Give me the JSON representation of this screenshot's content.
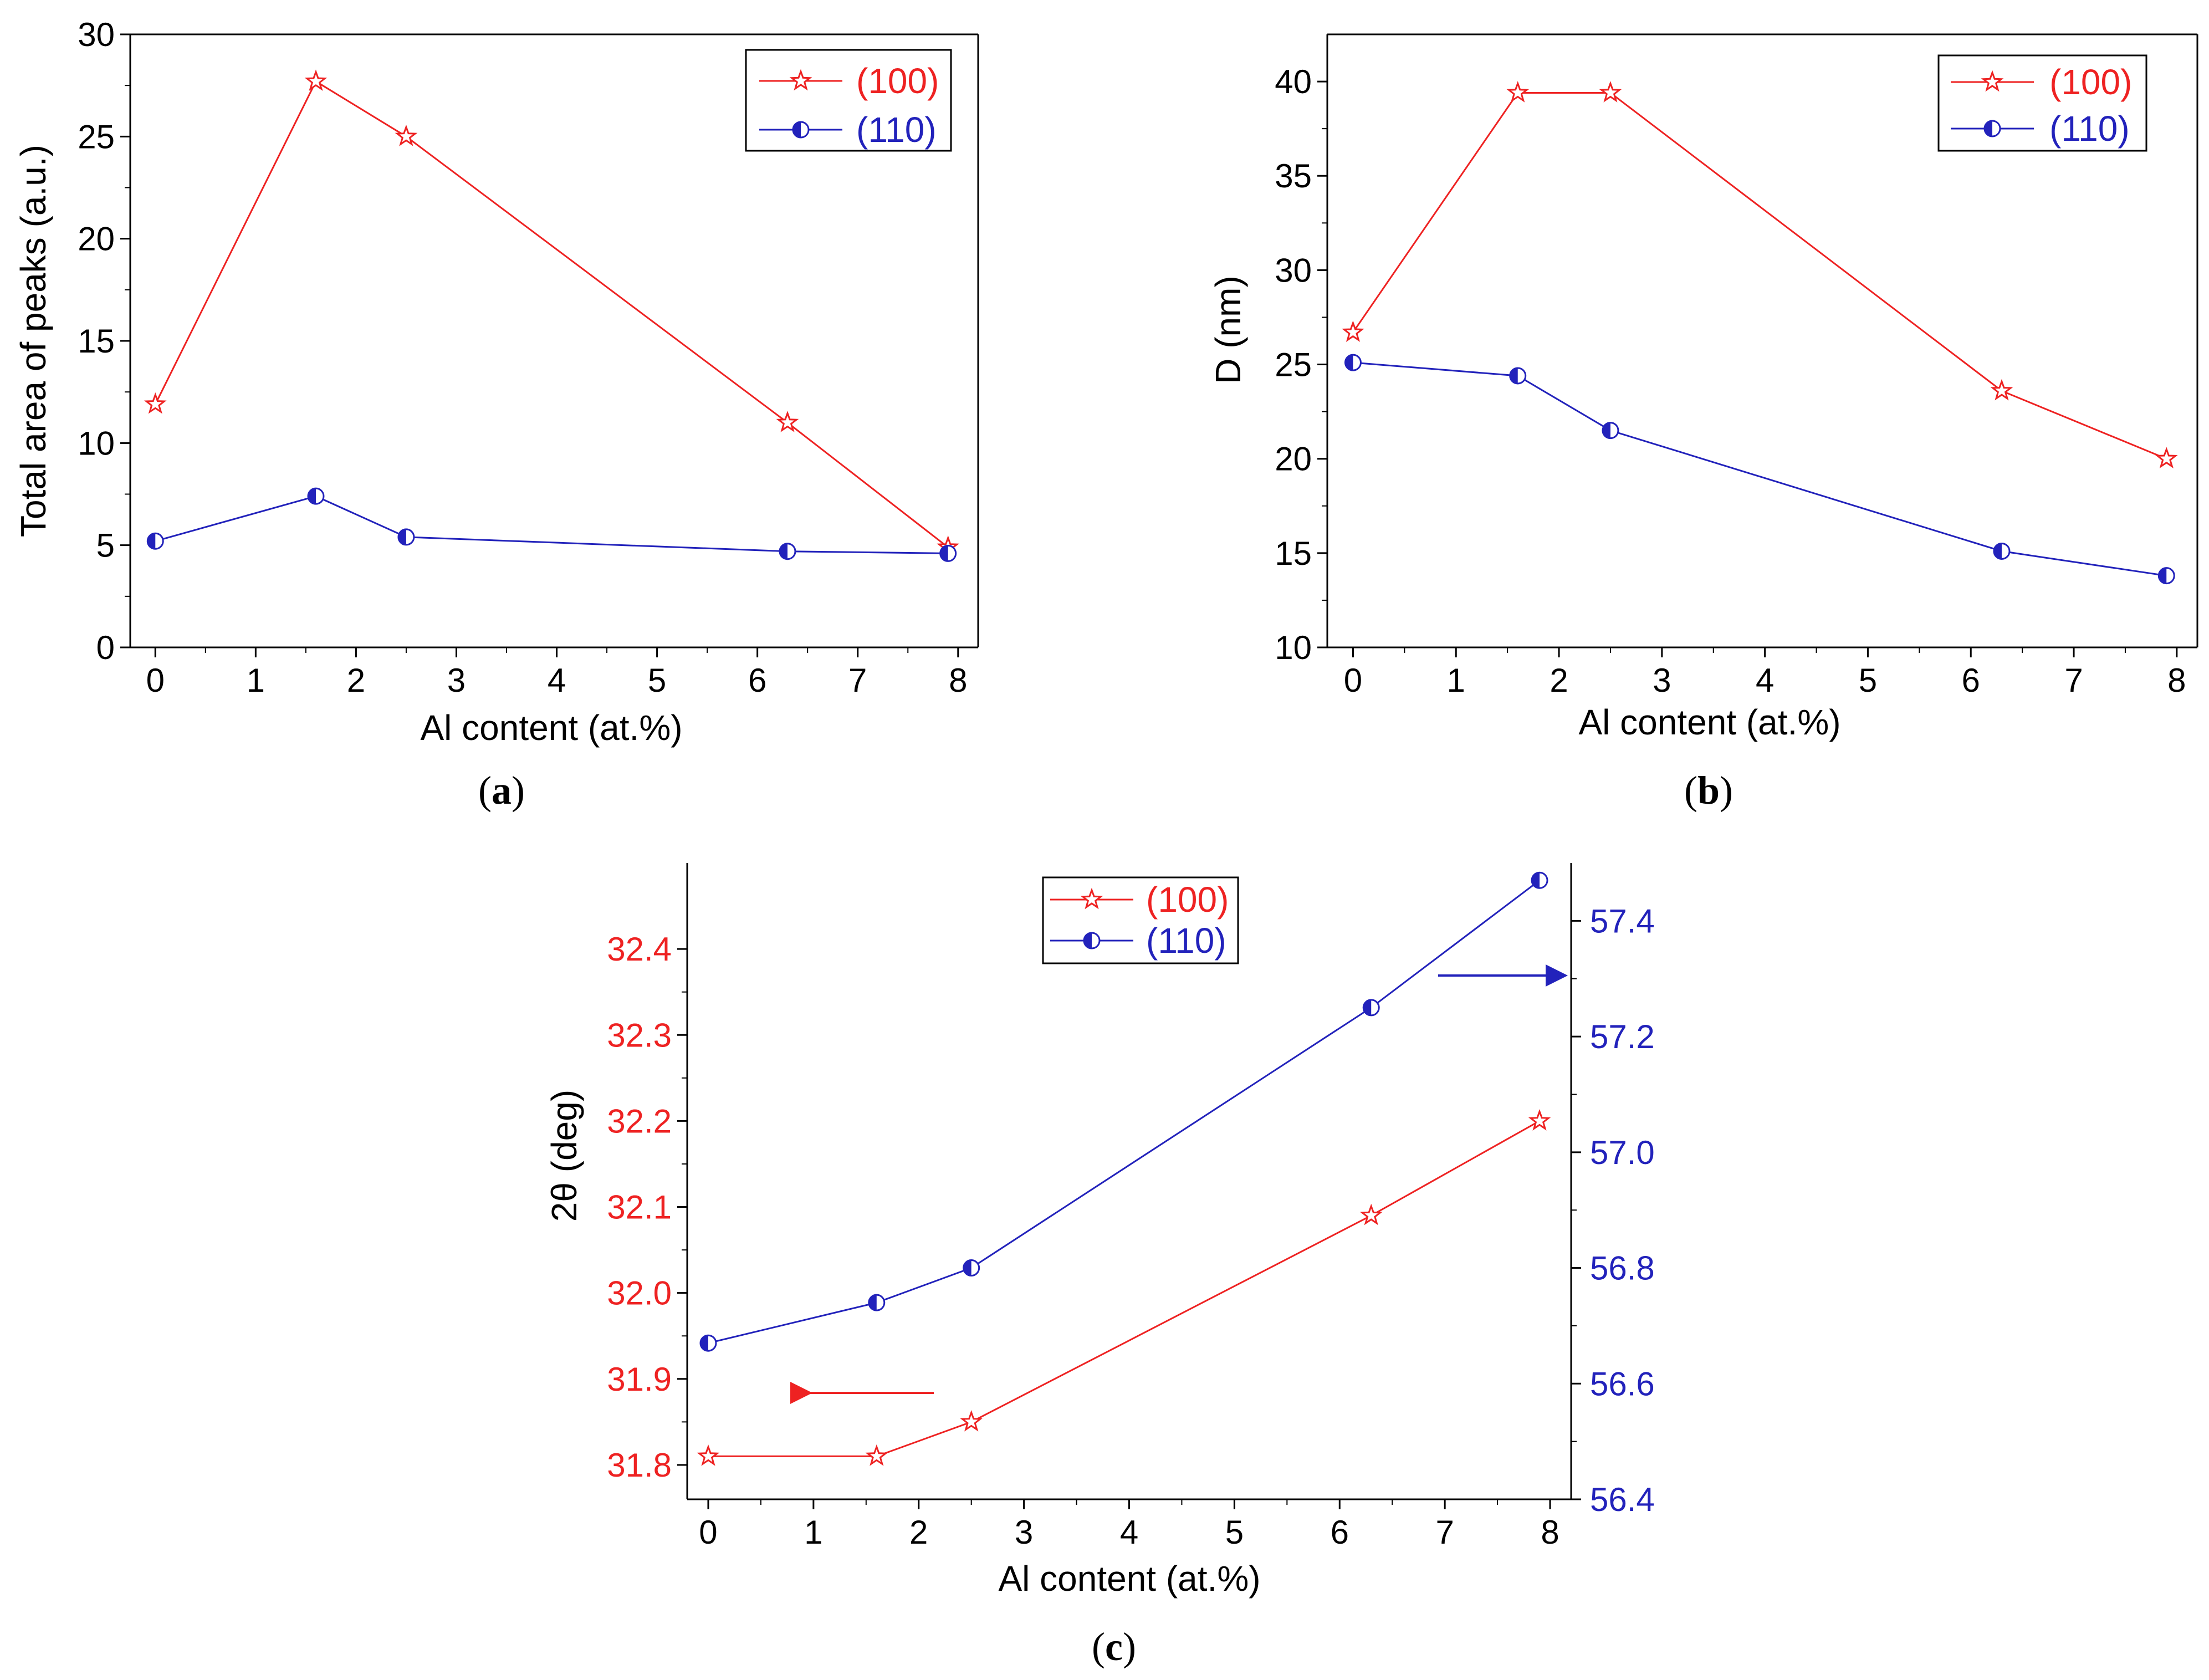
{
  "colors": {
    "s100": "#ee2222",
    "s110": "#2222bb",
    "axis": "#000000"
  },
  "chart_data": [
    {
      "panel": "a",
      "type": "line",
      "xlabel": "Al content (at.%)",
      "ylabel": "Total area of peaks (a.u.)",
      "xlim": [
        -0.25,
        8.2
      ],
      "ylim": [
        0,
        30
      ],
      "xticks": [
        "0",
        "1",
        "2",
        "3",
        "4",
        "5",
        "6",
        "7",
        "8"
      ],
      "yticks": [
        "0",
        "5",
        "10",
        "15",
        "20",
        "25",
        "30"
      ],
      "x": [
        0,
        1.6,
        2.5,
        6.3,
        7.9
      ],
      "series": [
        {
          "name": "(100)",
          "marker": "star",
          "values": [
            11.9,
            27.7,
            25.0,
            11.0,
            4.9
          ]
        },
        {
          "name": "(110)",
          "marker": "half-circle",
          "values": [
            5.2,
            7.4,
            5.4,
            4.7,
            4.6
          ]
        }
      ],
      "legend": {
        "position": "top-right",
        "labels": [
          "(100)",
          "(110)"
        ]
      },
      "panel_label": {
        "open": "(",
        "letter": "a",
        "close": ")"
      }
    },
    {
      "panel": "b",
      "type": "line",
      "xlabel": "Al content (at.%)",
      "ylabel": "D (nm)",
      "xlim": [
        -0.25,
        8.2
      ],
      "ylim": [
        10,
        42.5
      ],
      "xticks": [
        "0",
        "1",
        "2",
        "3",
        "4",
        "5",
        "6",
        "7",
        "8"
      ],
      "yticks": [
        "10",
        "15",
        "20",
        "25",
        "30",
        "35",
        "40"
      ],
      "x": [
        0,
        1.6,
        2.5,
        6.3,
        7.9
      ],
      "series": [
        {
          "name": "(100)",
          "marker": "star",
          "values": [
            26.7,
            39.4,
            39.4,
            23.6,
            20.0
          ]
        },
        {
          "name": "(110)",
          "marker": "half-circle",
          "values": [
            25.1,
            24.4,
            21.5,
            15.1,
            13.8
          ]
        }
      ],
      "legend": {
        "position": "top-right",
        "labels": [
          "(100)",
          "(110)"
        ]
      },
      "panel_label": {
        "open": "(",
        "letter": "b",
        "close": ")"
      }
    },
    {
      "panel": "c",
      "type": "line",
      "xlabel": "Al content (at.%)",
      "ylabel": "2θ (deg)",
      "xlim": [
        -0.2,
        8.2
      ],
      "ylim_left": [
        31.76,
        32.5
      ],
      "ylim_right": [
        56.4,
        57.5
      ],
      "xticks": [
        "0",
        "1",
        "2",
        "3",
        "4",
        "5",
        "6",
        "7",
        "8"
      ],
      "yticks_left": [
        "31.8",
        "31.9",
        "32.0",
        "32.1",
        "32.2",
        "32.3",
        "32.4"
      ],
      "yticks_right": [
        "56.4",
        "56.6",
        "56.8",
        "57.0",
        "57.2",
        "57.4"
      ],
      "x": [
        0,
        1.6,
        2.5,
        6.3,
        7.9
      ],
      "series": [
        {
          "name": "(100)",
          "axis": "left",
          "marker": "star",
          "values": [
            31.81,
            31.81,
            31.85,
            32.09,
            32.2
          ]
        },
        {
          "name": "(110)",
          "axis": "right",
          "marker": "half-circle",
          "values": [
            56.67,
            56.74,
            56.8,
            57.25,
            57.47
          ]
        }
      ],
      "legend": {
        "position": "top-center",
        "labels": [
          "(100)",
          "(110)"
        ]
      },
      "annotations": [
        {
          "type": "arrow",
          "direction": "left",
          "series": "(100)",
          "meaning": "left axis"
        },
        {
          "type": "arrow",
          "direction": "right",
          "series": "(110)",
          "meaning": "right axis"
        }
      ],
      "panel_label": {
        "open": "(",
        "letter": "c",
        "close": ")"
      }
    }
  ]
}
